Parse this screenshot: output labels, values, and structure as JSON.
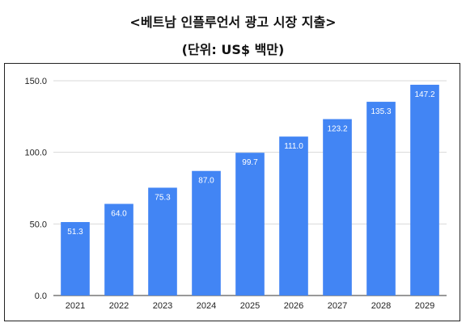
{
  "header": {
    "title": "<베트남 인플루언서 광고 시장 지출>",
    "subtitle": "(단위: US$ 백만)"
  },
  "colors": {
    "bar": "#4285f4",
    "grid": "#d9d9d9",
    "axis": "#333333"
  },
  "chart_data": {
    "type": "bar",
    "title": "<베트남 인플루언서 광고 시장 지출>",
    "subtitle": "(단위: US$ 백만)",
    "xlabel": "",
    "ylabel": "",
    "categories": [
      "2021",
      "2022",
      "2023",
      "2024",
      "2025",
      "2026",
      "2027",
      "2028",
      "2029"
    ],
    "values": [
      51.3,
      64.0,
      75.3,
      87.0,
      99.7,
      111.0,
      123.2,
      135.3,
      147.2
    ],
    "value_labels": [
      "51.3",
      "64.0",
      "75.3",
      "87.0",
      "99.7",
      "111.0",
      "123.2",
      "135.3",
      "147.2"
    ],
    "ylim": [
      0,
      150
    ],
    "yticks": [
      0,
      50,
      100,
      150
    ],
    "ytick_labels": [
      "0.0",
      "50.0",
      "100.0",
      "150.0"
    ],
    "grid": true,
    "legend": "none"
  }
}
